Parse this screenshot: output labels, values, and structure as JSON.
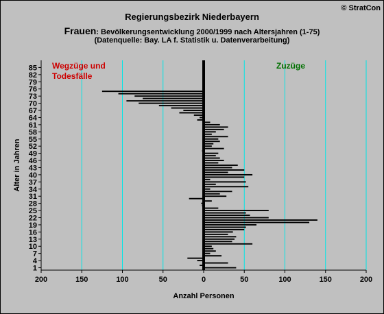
{
  "header": {
    "title": "Regierungsbezirk Niederbayern",
    "subtitle_main": "Frauen",
    "subtitle_rest": ": Bevölkerungsentwicklung 2000/1999  nach Altersjahren (1-75)",
    "source": "(Datenquelle: Bay. LA f. Statistik u. Datenverarbeitung)",
    "copyright": "© StratCon"
  },
  "colors": {
    "background": "#c0c0c0",
    "grid": "#00e5e5",
    "bar": "#000000",
    "left_label": "#cc0000",
    "right_label": "#007000"
  },
  "chart_data": {
    "type": "bar",
    "orientation": "horizontal",
    "xlabel": "Anzahl Personen",
    "ylabel": "Alter in Jahren",
    "xlim": [
      -200,
      200
    ],
    "ylim": [
      0,
      88
    ],
    "x_ticks": [
      -200,
      -150,
      -100,
      -50,
      0,
      50,
      100,
      150,
      200
    ],
    "x_tick_labels": [
      "200",
      "150",
      "100",
      "50",
      "0",
      "50",
      "100",
      "150",
      "200"
    ],
    "y_ticks": [
      1,
      4,
      7,
      10,
      13,
      16,
      19,
      22,
      25,
      28,
      31,
      34,
      37,
      40,
      43,
      46,
      49,
      52,
      55,
      58,
      61,
      64,
      67,
      70,
      73,
      76,
      79,
      82,
      85
    ],
    "y_tick_labels": [
      "1",
      "4",
      "7",
      "10",
      "13",
      "16",
      "19",
      "22",
      "25",
      "28",
      "31",
      "34",
      "37",
      "40",
      "43",
      "46",
      "49",
      "52",
      "55",
      "58",
      "61",
      "64",
      "67",
      "70",
      "73",
      "76",
      "79",
      "82",
      "85"
    ],
    "annotations": {
      "left": [
        "Wegzüge und",
        "Todesfälle"
      ],
      "right": "Zuzüge"
    },
    "grid": true,
    "ages": [
      1,
      2,
      3,
      4,
      5,
      6,
      7,
      8,
      9,
      10,
      11,
      12,
      13,
      14,
      15,
      16,
      17,
      18,
      19,
      20,
      21,
      22,
      23,
      24,
      25,
      26,
      27,
      28,
      29,
      30,
      31,
      32,
      33,
      34,
      35,
      36,
      37,
      38,
      39,
      40,
      41,
      42,
      43,
      44,
      45,
      46,
      47,
      48,
      49,
      50,
      51,
      52,
      53,
      54,
      55,
      56,
      57,
      58,
      59,
      60,
      61,
      62,
      63,
      64,
      65,
      66,
      67,
      68,
      69,
      70,
      71,
      72,
      73,
      74,
      75
    ],
    "values": [
      40,
      -5,
      30,
      -8,
      -20,
      22,
      8,
      15,
      12,
      10,
      60,
      35,
      38,
      40,
      30,
      36,
      50,
      52,
      65,
      130,
      140,
      80,
      57,
      52,
      80,
      18,
      -2,
      -3,
      10,
      -18,
      28,
      20,
      35,
      8,
      55,
      15,
      52,
      8,
      50,
      60,
      30,
      50,
      35,
      42,
      18,
      25,
      20,
      15,
      18,
      -2,
      25,
      10,
      12,
      20,
      18,
      30,
      10,
      15,
      25,
      30,
      20,
      8,
      -8,
      -5,
      -12,
      -30,
      -25,
      -40,
      -55,
      -80,
      -95,
      -75,
      -85,
      -105,
      -125
    ]
  }
}
